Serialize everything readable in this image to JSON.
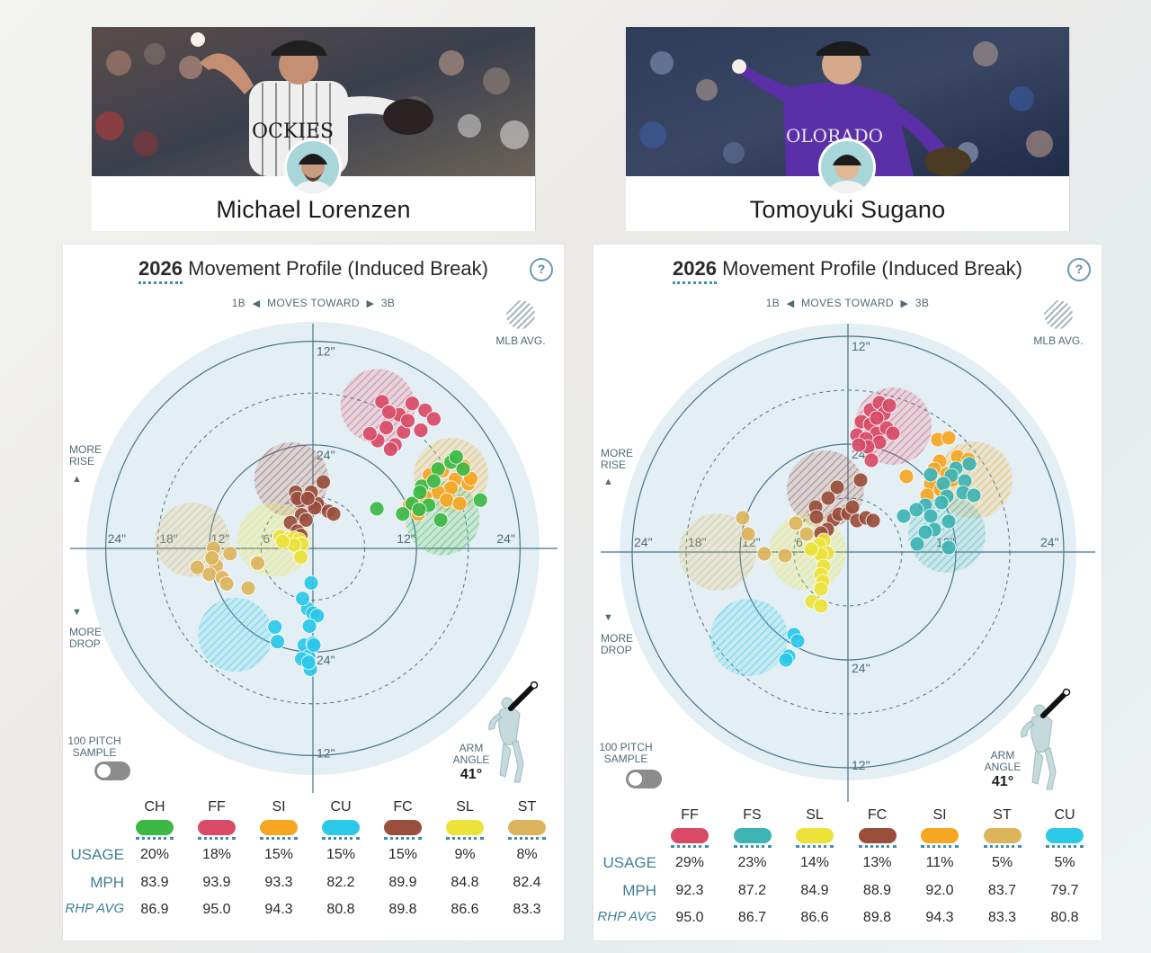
{
  "players": [
    {
      "name": "Michael Lorenzen",
      "panel": {
        "year": "2026",
        "title": "Movement Profile (Induced Break)",
        "help": "?",
        "toward": {
          "left": "1B",
          "middle": "MOVES TOWARD",
          "right": "3B"
        },
        "mlb_avg": "MLB AVG.",
        "more_rise": [
          "MORE",
          "RISE"
        ],
        "more_drop": [
          "MORE",
          "DROP"
        ],
        "sample_label": [
          "100 PITCH",
          "SAMPLE"
        ],
        "arm_angle_label": [
          "ARM",
          "ANGLE"
        ],
        "arm_angle_value": "41°",
        "row_labels": {
          "usage": "USAGE",
          "mph": "MPH",
          "rhp": "RHP AVG"
        }
      },
      "pitches": [
        {
          "code": "CH",
          "color": "#3cb844",
          "usage": "20%",
          "mph": "83.9",
          "rhp_avg": "86.9"
        },
        {
          "code": "FF",
          "color": "#d84a66",
          "usage": "18%",
          "mph": "93.9",
          "rhp_avg": "95.0"
        },
        {
          "code": "SI",
          "color": "#f6a623",
          "usage": "15%",
          "mph": "93.3",
          "rhp_avg": "94.3"
        },
        {
          "code": "CU",
          "color": "#2cc8e8",
          "usage": "15%",
          "mph": "82.2",
          "rhp_avg": "80.8"
        },
        {
          "code": "FC",
          "color": "#9a4e3c",
          "usage": "15%",
          "mph": "89.9",
          "rhp_avg": "89.8"
        },
        {
          "code": "SL",
          "color": "#ece23a",
          "usage": "9%",
          "mph": "84.8",
          "rhp_avg": "86.6"
        },
        {
          "code": "ST",
          "color": "#dcb45c",
          "usage": "8%",
          "mph": "82.4",
          "rhp_avg": "83.3"
        }
      ]
    },
    {
      "name": "Tomoyuki Sugano",
      "panel": {
        "year": "2026",
        "title": "Movement Profile (Induced Break)",
        "help": "?",
        "toward": {
          "left": "1B",
          "middle": "MOVES TOWARD",
          "right": "3B"
        },
        "mlb_avg": "MLB AVG.",
        "more_rise": [
          "MORE",
          "RISE"
        ],
        "more_drop": [
          "MORE",
          "DROP"
        ],
        "sample_label": [
          "100 PITCH",
          "SAMPLE"
        ],
        "arm_angle_label": [
          "ARM",
          "ANGLE"
        ],
        "arm_angle_value": "41°",
        "row_labels": {
          "usage": "USAGE",
          "mph": "MPH",
          "rhp": "RHP AVG"
        }
      },
      "pitches": [
        {
          "code": "FF",
          "color": "#d84a66",
          "usage": "29%",
          "mph": "92.3",
          "rhp_avg": "95.0"
        },
        {
          "code": "FS",
          "color": "#3eb3b3",
          "usage": "23%",
          "mph": "87.2",
          "rhp_avg": "86.7"
        },
        {
          "code": "SL",
          "color": "#ece23a",
          "usage": "14%",
          "mph": "84.9",
          "rhp_avg": "86.6"
        },
        {
          "code": "FC",
          "color": "#9a4e3c",
          "usage": "13%",
          "mph": "88.9",
          "rhp_avg": "89.8"
        },
        {
          "code": "SI",
          "color": "#f6a623",
          "usage": "11%",
          "mph": "92.0",
          "rhp_avg": "94.3"
        },
        {
          "code": "ST",
          "color": "#dcb45c",
          "usage": "5%",
          "mph": "83.7",
          "rhp_avg": "83.3"
        },
        {
          "code": "CU",
          "color": "#2cc8e8",
          "usage": "5%",
          "mph": "79.7",
          "rhp_avg": "80.8"
        }
      ]
    }
  ],
  "chart_data": [
    {
      "type": "scatter",
      "title": "2026 Movement Profile (Induced Break)",
      "axis_unit": "inches",
      "rings": [
        6,
        12,
        18,
        24
      ],
      "tick_labels": [
        "24\"",
        "18\"",
        "12\"",
        "6\"",
        "24\"",
        "12\"",
        "12\"",
        "24\""
      ],
      "xlim": [
        -24,
        24
      ],
      "ylim": [
        -24,
        24
      ],
      "mlb_avg": [
        {
          "pitch": "FF",
          "x": 7.5,
          "y": 16.5
        },
        {
          "pitch": "SI",
          "x": 16,
          "y": 8.5
        },
        {
          "pitch": "CH",
          "x": 15,
          "y": 3.5
        },
        {
          "pitch": "FC",
          "x": -2.5,
          "y": 8
        },
        {
          "pitch": "ST",
          "x": -14,
          "y": 1
        },
        {
          "pitch": "SL",
          "x": -4.5,
          "y": 1
        },
        {
          "pitch": "CU",
          "x": -9,
          "y": -10
        }
      ],
      "series": [
        {
          "name": "FF",
          "points": [
            [
              8,
              17
            ],
            [
              10,
              15.5
            ],
            [
              11.5,
              16.8
            ],
            [
              13,
              16
            ],
            [
              14,
              15
            ],
            [
              8.5,
              14
            ],
            [
              10.5,
              13.5
            ],
            [
              9.5,
              12
            ],
            [
              7.5,
              12.5
            ],
            [
              9,
              11.5
            ],
            [
              11,
              14.8
            ],
            [
              12.5,
              13.7
            ],
            [
              6.6,
              13.3
            ],
            [
              8.8,
              15.8
            ]
          ]
        },
        {
          "name": "SI",
          "points": [
            [
              13.5,
              8.5
            ],
            [
              15,
              9
            ],
            [
              16.5,
              8
            ],
            [
              17.5,
              9.5
            ],
            [
              16,
              7
            ],
            [
              18,
              7.5
            ],
            [
              14.5,
              6.5
            ],
            [
              13,
              6
            ],
            [
              11.2,
              5
            ],
            [
              12.2,
              4
            ],
            [
              15.5,
              5.6
            ],
            [
              17,
              5.2
            ],
            [
              18.3,
              8.1
            ]
          ]
        },
        {
          "name": "CH",
          "points": [
            [
              14.5,
              9.2
            ],
            [
              16,
              10
            ],
            [
              17.4,
              9.2
            ],
            [
              12.6,
              7.2
            ],
            [
              14,
              7.8
            ],
            [
              11.5,
              5.2
            ],
            [
              13.4,
              5
            ],
            [
              12.4,
              6.5
            ],
            [
              7.4,
              4.6
            ],
            [
              10.4,
              4
            ],
            [
              12.3,
              4.5
            ],
            [
              14.8,
              3.3
            ],
            [
              19.4,
              5.6
            ],
            [
              16.6,
              10.6
            ]
          ]
        },
        {
          "name": "CU",
          "points": [
            [
              -0.2,
              -4
            ],
            [
              -0.6,
              -7
            ],
            [
              0,
              -7.5
            ],
            [
              0.5,
              -7.8
            ],
            [
              -0.4,
              -9
            ],
            [
              -1,
              -11.2
            ],
            [
              0,
              -11
            ],
            [
              -0.5,
              -12.5
            ],
            [
              -0.7,
              -13
            ],
            [
              -1.3,
              -12.8
            ],
            [
              -0.3,
              -14
            ],
            [
              -1.2,
              -5.8
            ],
            [
              -0.5,
              -13.2
            ],
            [
              -4.1,
              -10.8
            ],
            [
              -4.4,
              -9.1
            ],
            [
              0.1,
              -11.2
            ]
          ]
        },
        {
          "name": "FC",
          "points": [
            [
              -2,
              6.5
            ],
            [
              -1.5,
              5.5
            ],
            [
              -0.5,
              5.8
            ],
            [
              0.3,
              5
            ],
            [
              0.8,
              4.8
            ],
            [
              -1.3,
              3.9
            ],
            [
              -0.8,
              3.3
            ],
            [
              -2.6,
              3
            ],
            [
              -1.8,
              2
            ],
            [
              -1.4,
              1.5
            ],
            [
              0.5,
              5.2
            ],
            [
              -0.2,
              6.5
            ],
            [
              -1.8,
              5.8
            ],
            [
              1.2,
              7.7
            ],
            [
              0.2,
              4.7
            ],
            [
              1.8,
              4.3
            ],
            [
              2.4,
              4
            ],
            [
              -0.6,
              5.8
            ]
          ]
        },
        {
          "name": "SL",
          "points": [
            [
              -3.8,
              1.4
            ],
            [
              -2.8,
              1.1
            ],
            [
              -2.2,
              1.2
            ],
            [
              -1.6,
              1
            ],
            [
              -1.3,
              0.5
            ],
            [
              -2.2,
              0.4
            ],
            [
              -3.5,
              0.8
            ],
            [
              -1.4,
              -1
            ]
          ]
        },
        {
          "name": "ST",
          "points": [
            [
              -9.6,
              -0.6
            ],
            [
              -11.5,
              0
            ],
            [
              -11.2,
              -2
            ],
            [
              -12,
              -3
            ],
            [
              -10.5,
              -3.4
            ],
            [
              -10,
              -4.1
            ],
            [
              -6.4,
              -1.7
            ],
            [
              -7.5,
              -4.6
            ],
            [
              -11.7,
              -1.1
            ],
            [
              -13.4,
              -2.2
            ]
          ]
        }
      ]
    },
    {
      "type": "scatter",
      "title": "2026 Movement Profile (Induced Break)",
      "axis_unit": "inches",
      "rings": [
        6,
        12,
        18,
        24
      ],
      "tick_labels": [
        "24\"",
        "18\"",
        "12\"",
        "6\"",
        "24\"",
        "12\"",
        "12\"",
        "24\""
      ],
      "xlim": [
        -24,
        24
      ],
      "ylim": [
        -24,
        24
      ],
      "mlb_avg": [
        {
          "pitch": "FF",
          "x": 5,
          "y": 14
        },
        {
          "pitch": "SI",
          "x": 14,
          "y": 8
        },
        {
          "pitch": "FS",
          "x": 11,
          "y": 2
        },
        {
          "pitch": "FC",
          "x": -2.5,
          "y": 7
        },
        {
          "pitch": "ST",
          "x": -14.5,
          "y": 0
        },
        {
          "pitch": "SL",
          "x": -4.5,
          "y": 0
        },
        {
          "pitch": "CU",
          "x": -11,
          "y": -9.5
        }
      ],
      "series": [
        {
          "name": "FF",
          "points": [
            [
              2.5,
              15.8
            ],
            [
              3.5,
              16.6
            ],
            [
              4,
              15.4
            ],
            [
              1.5,
              14.5
            ],
            [
              2.5,
              14.2
            ],
            [
              3.2,
              13.2
            ],
            [
              4.3,
              13.8
            ],
            [
              1,
              13
            ],
            [
              2,
              12.6
            ],
            [
              3.5,
              12.2
            ],
            [
              2.2,
              11.7
            ],
            [
              1.2,
              11.9
            ],
            [
              5,
              13.2
            ],
            [
              2.6,
              10.2
            ],
            [
              4.6,
              16.3
            ],
            [
              3.2,
              14.9
            ]
          ]
        },
        {
          "name": "SI",
          "points": [
            [
              10,
              12.5
            ],
            [
              11.2,
              12.7
            ],
            [
              12.2,
              10.6
            ],
            [
              10.2,
              10.1
            ],
            [
              9.6,
              9.2
            ],
            [
              11,
              8.7
            ],
            [
              11.6,
              8
            ],
            [
              9.2,
              7.6
            ],
            [
              10.3,
              6.9
            ],
            [
              13.4,
              10.3
            ],
            [
              6.5,
              8.4
            ],
            [
              8.8,
              6.3
            ]
          ]
        },
        {
          "name": "FS",
          "points": [
            [
              12,
              9.3
            ],
            [
              13.5,
              9.8
            ],
            [
              11.5,
              8.5
            ],
            [
              13,
              7.9
            ],
            [
              9.2,
              8.6
            ],
            [
              10.6,
              7.6
            ],
            [
              12.8,
              6.6
            ],
            [
              14,
              6.3
            ],
            [
              11,
              6.2
            ],
            [
              10.4,
              5.5
            ],
            [
              8.6,
              5.2
            ],
            [
              7.6,
              4.7
            ],
            [
              9.2,
              4
            ],
            [
              6.2,
              4
            ],
            [
              9.6,
              2.5
            ],
            [
              11.2,
              3.4
            ],
            [
              8.6,
              2.2
            ],
            [
              11.2,
              0.5
            ],
            [
              7.7,
              0.9
            ]
          ]
        },
        {
          "name": "FC",
          "points": [
            [
              -1.2,
              7.2
            ],
            [
              -2.2,
              6
            ],
            [
              -3.6,
              5
            ],
            [
              -1.6,
              3.6
            ],
            [
              -1,
              4.2
            ],
            [
              0,
              4.3
            ],
            [
              -2.3,
              2.5
            ],
            [
              0.5,
              5
            ],
            [
              1,
              3.5
            ],
            [
              2,
              3.8
            ],
            [
              2.8,
              3.5
            ],
            [
              -3.5,
              3.9
            ],
            [
              -3,
              2.1
            ],
            [
              1.4,
              8
            ]
          ]
        },
        {
          "name": "SL",
          "points": [
            [
              -2.7,
              1.3
            ],
            [
              -3.2,
              0.8
            ],
            [
              -2.3,
              -0.1
            ],
            [
              -3,
              -0.3
            ],
            [
              -2.7,
              -1.6
            ],
            [
              -3,
              -2.5
            ],
            [
              -2.8,
              -3.3
            ],
            [
              -3,
              -4.1
            ],
            [
              -4,
              -5.5
            ],
            [
              -3,
              -6
            ],
            [
              -4.1,
              0.3
            ]
          ]
        },
        {
          "name": "ST",
          "points": [
            [
              -5.8,
              3.2
            ],
            [
              -4.6,
              2
            ],
            [
              -11.7,
              3.8
            ],
            [
              -11.1,
              2
            ],
            [
              -7,
              -0.4
            ],
            [
              -9.3,
              -0.2
            ]
          ]
        },
        {
          "name": "CU",
          "points": [
            [
              -6,
              -9.2
            ],
            [
              -5.6,
              -9.9
            ],
            [
              -6.6,
              -11.6
            ],
            [
              -6.9,
              -12
            ]
          ]
        }
      ]
    }
  ]
}
